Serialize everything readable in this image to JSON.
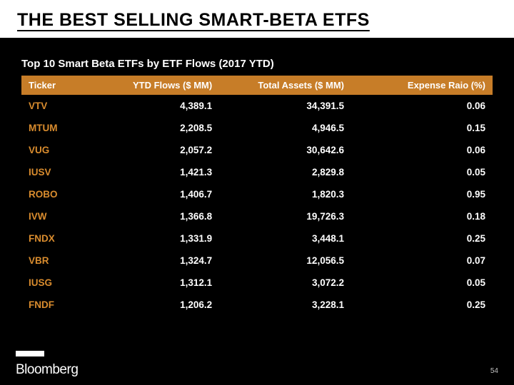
{
  "slide": {
    "title": "THE BEST SELLING SMART-BETA ETFS",
    "subtitle": "Top 10 Smart Beta ETFs by ETF Flows (2017 YTD)",
    "brand": "Bloomberg",
    "page_number": "54"
  },
  "table": {
    "type": "table",
    "header_bg_color": "#c77d28",
    "header_text_color": "#ffffff",
    "ticker_color": "#d98c2e",
    "value_color": "#ffffff",
    "background_color": "#000000",
    "columns": [
      {
        "label": "Ticker",
        "align": "left"
      },
      {
        "label": "YTD Flows ($ MM)",
        "align": "right"
      },
      {
        "label": "Total Assets ($ MM)",
        "align": "right"
      },
      {
        "label": "Expense Raio (%)",
        "align": "right"
      }
    ],
    "rows": [
      {
        "ticker": "VTV",
        "flows": "4,389.1",
        "assets": "34,391.5",
        "expense": "0.06"
      },
      {
        "ticker": "MTUM",
        "flows": "2,208.5",
        "assets": "4,946.5",
        "expense": "0.15"
      },
      {
        "ticker": "VUG",
        "flows": "2,057.2",
        "assets": "30,642.6",
        "expense": "0.06"
      },
      {
        "ticker": "IUSV",
        "flows": "1,421.3",
        "assets": "2,829.8",
        "expense": "0.05"
      },
      {
        "ticker": "ROBO",
        "flows": "1,406.7",
        "assets": "1,820.3",
        "expense": "0.95"
      },
      {
        "ticker": "IVW",
        "flows": "1,366.8",
        "assets": "19,726.3",
        "expense": "0.18"
      },
      {
        "ticker": "FNDX",
        "flows": "1,331.9",
        "assets": "3,448.1",
        "expense": "0.25"
      },
      {
        "ticker": "VBR",
        "flows": "1,324.7",
        "assets": "12,056.5",
        "expense": "0.07"
      },
      {
        "ticker": "IUSG",
        "flows": "1,312.1",
        "assets": "3,072.2",
        "expense": "0.05"
      },
      {
        "ticker": "FNDF",
        "flows": "1,206.2",
        "assets": "3,228.1",
        "expense": "0.25"
      }
    ]
  }
}
